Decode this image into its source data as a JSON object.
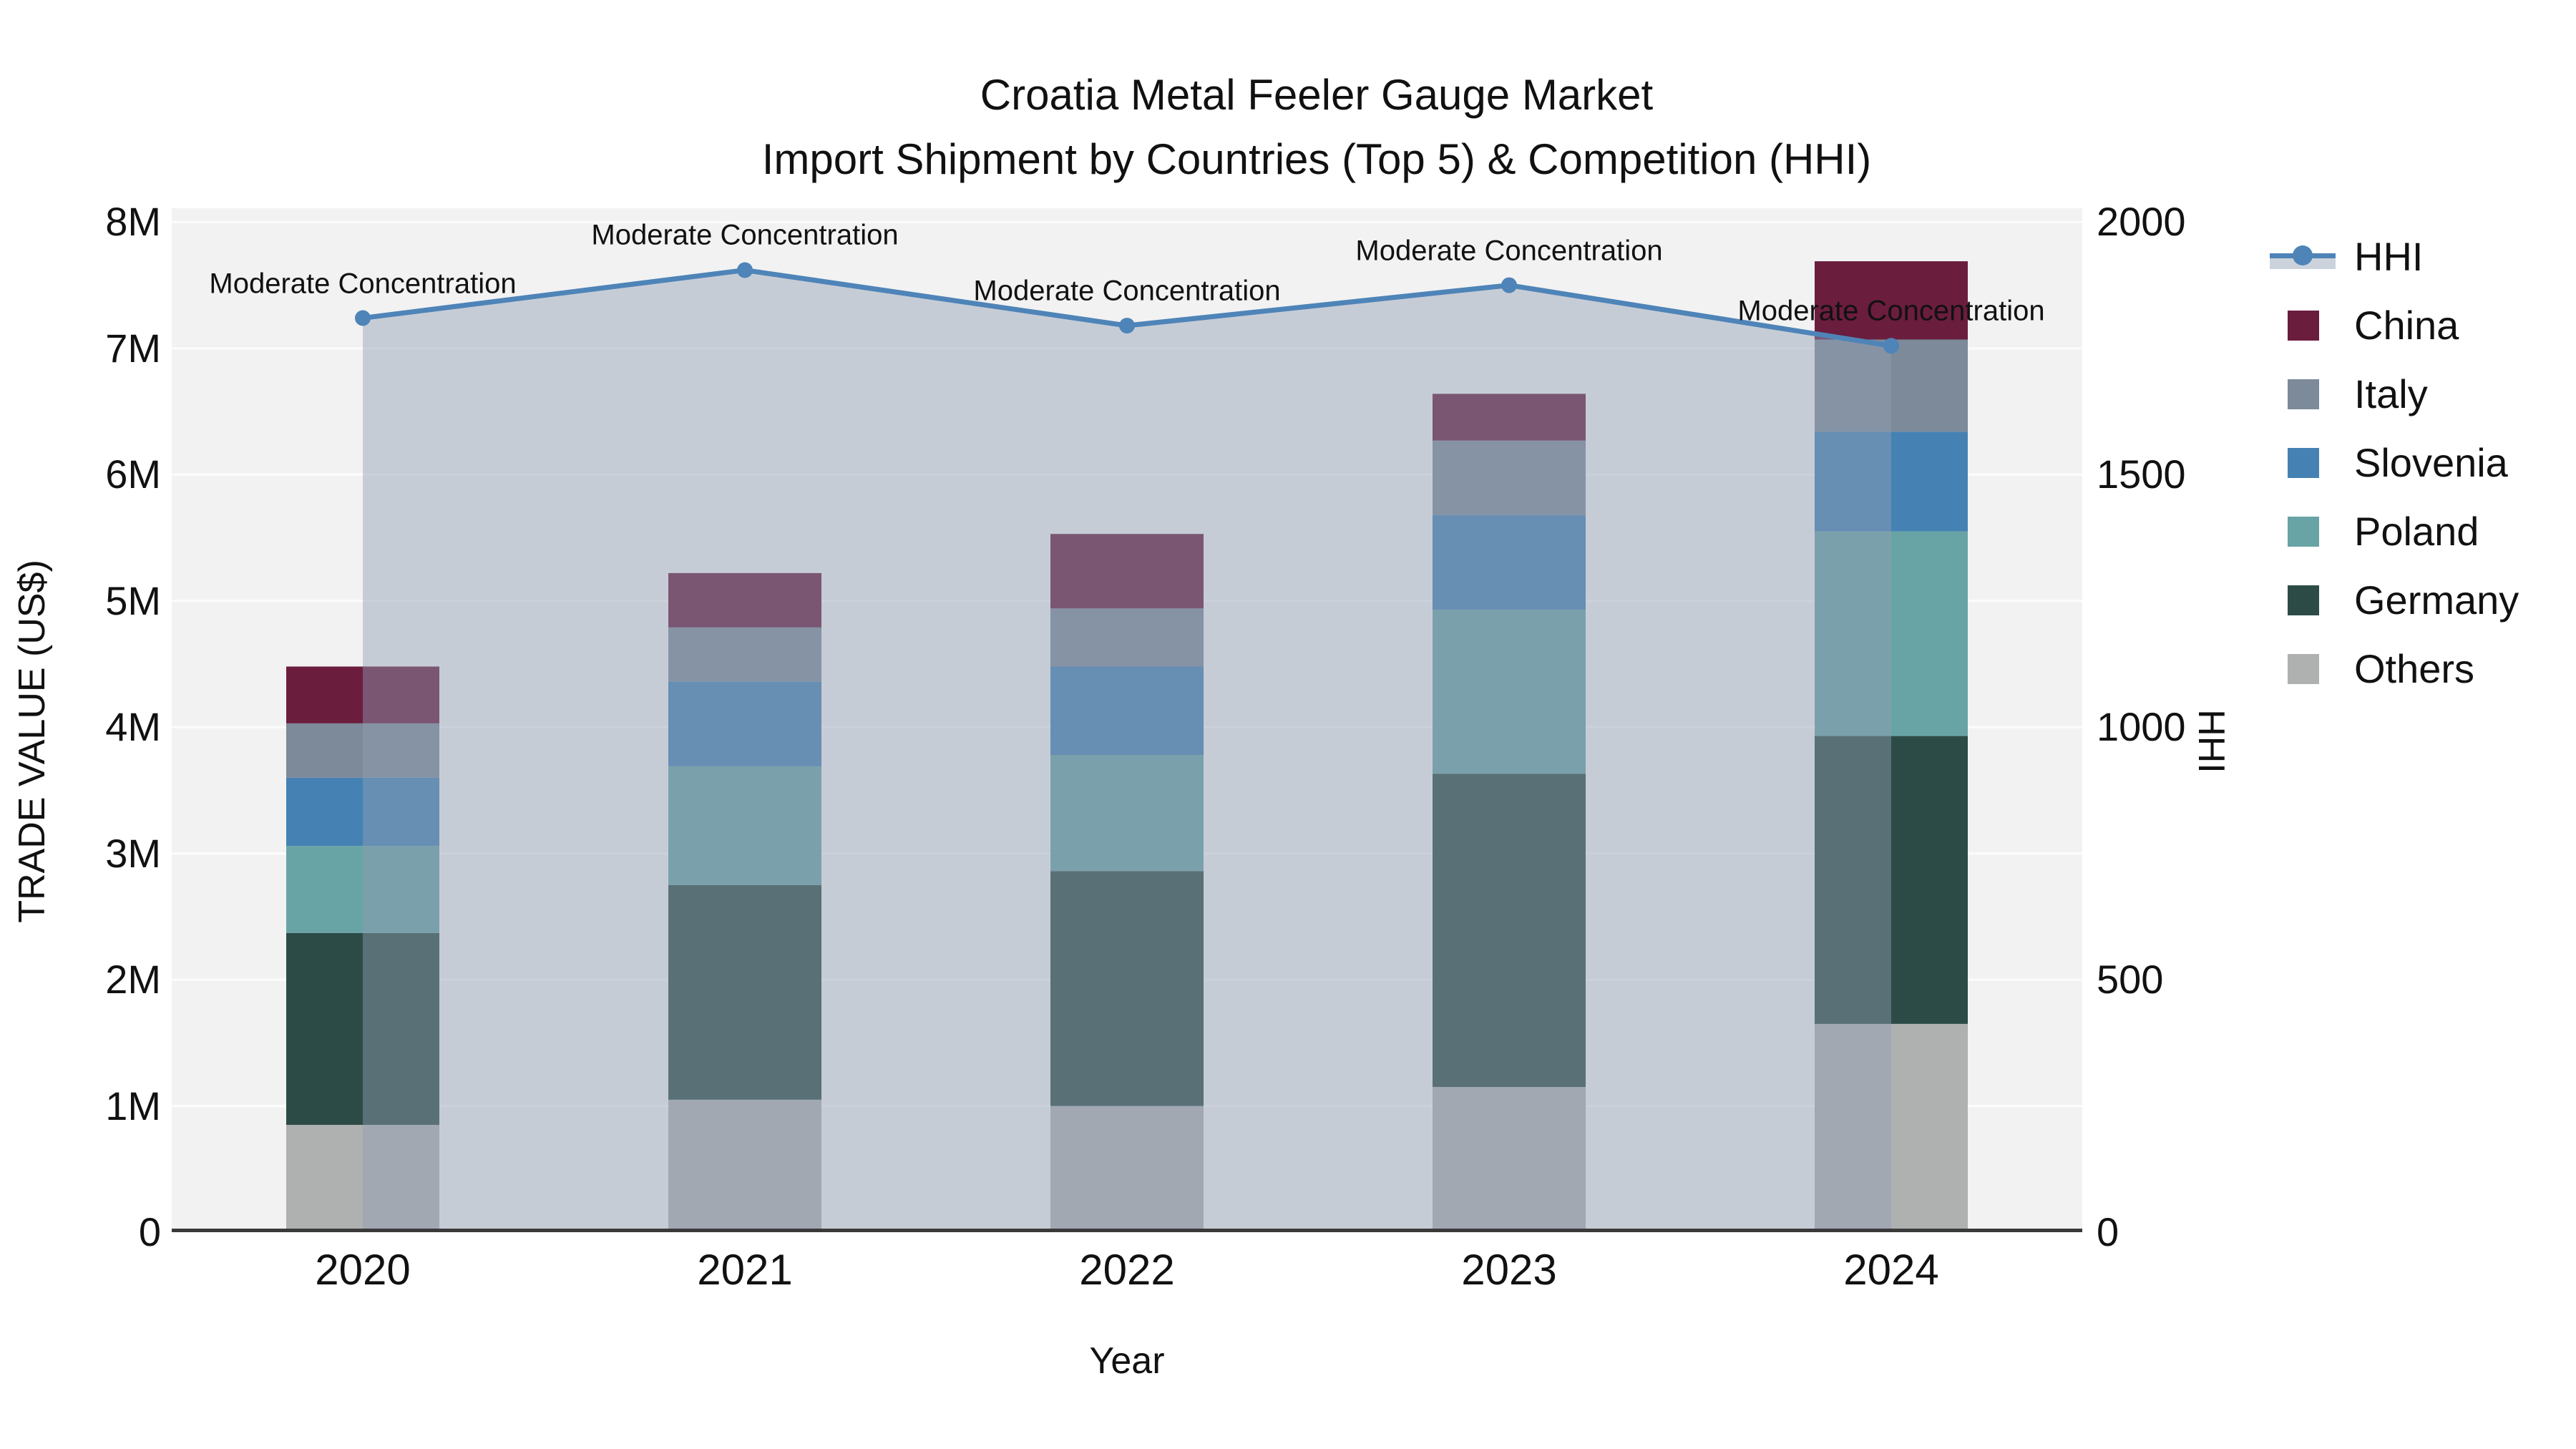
{
  "figure": {
    "title_line1": "Croatia Metal Feeler Gauge Market",
    "title_line2": "Import Shipment by Countries (Top 5) & Competition (HHI)"
  },
  "axes": {
    "y_left_title": "TRADE VALUE (US$)",
    "y_right_title": "HHI",
    "x_title": "Year",
    "y_left_ticks": [
      "0",
      "1M",
      "2M",
      "3M",
      "4M",
      "5M",
      "6M",
      "7M",
      "8M"
    ],
    "y_right_ticks": [
      "0",
      "500",
      "1000",
      "1500",
      "2000"
    ],
    "y_left_max_musd": 8.11,
    "y_right_max": 2027.5,
    "grid_on": true
  },
  "chart_data": {
    "type": "bar+line",
    "title": "Croatia Metal Feeler Gauge Market Import Shipment by Countries (Top 5) & Competition (HHI)",
    "xlabel": "Year",
    "ylabel_left": "TRADE VALUE (US$)",
    "ylabel_right": "HHI",
    "categories": [
      "2020",
      "2021",
      "2022",
      "2023",
      "2024"
    ],
    "bar_unit": "US$ millions",
    "ylim_left_musd": [
      0,
      8
    ],
    "ylim_right": [
      0,
      2000
    ],
    "stack_order_bottom_to_top": [
      "Others",
      "Germany",
      "Poland",
      "Slovenia",
      "Italy",
      "China"
    ],
    "series": [
      {
        "name": "Others",
        "color": "#AFB1B1",
        "values": [
          0.85,
          1.05,
          1.0,
          1.15,
          1.65
        ]
      },
      {
        "name": "Germany",
        "color": "#2D4B46",
        "values": [
          1.52,
          1.7,
          1.86,
          2.48,
          2.28
        ]
      },
      {
        "name": "Poland",
        "color": "#68A4A5",
        "values": [
          0.69,
          0.94,
          0.92,
          1.3,
          1.62
        ]
      },
      {
        "name": "Slovenia",
        "color": "#4581B3",
        "values": [
          0.54,
          0.67,
          0.7,
          0.75,
          0.79
        ]
      },
      {
        "name": "Italy",
        "color": "#7C8A99",
        "values": [
          0.43,
          0.43,
          0.46,
          0.59,
          0.73
        ]
      },
      {
        "name": "China",
        "color": "#6B1D3E",
        "values": [
          0.45,
          0.43,
          0.59,
          0.37,
          0.62
        ]
      }
    ],
    "bar_totals_musd": [
      4.48,
      5.22,
      5.53,
      6.64,
      7.69
    ],
    "line": {
      "name": "HHI",
      "color": "#4E84B8",
      "fill": "rgba(145,158,180,0.45)",
      "values": [
        1810,
        1905,
        1795,
        1875,
        1755
      ]
    },
    "annotations": [
      "Moderate Concentration",
      "Moderate Concentration",
      "Moderate Concentration",
      "Moderate Concentration",
      "Moderate Concentration"
    ],
    "legend_order": [
      "HHI",
      "China",
      "Italy",
      "Slovenia",
      "Poland",
      "Germany",
      "Others"
    ],
    "legend_position": "right"
  },
  "style": {
    "plot_bg": "#F2F2F2",
    "figure_bg": "#FFFFFF",
    "gridline": "#FFFFFF",
    "axis_line": "#3A3A3A",
    "text": "#1A1A1A",
    "hhi_legend_band": "#CCD2DC"
  }
}
